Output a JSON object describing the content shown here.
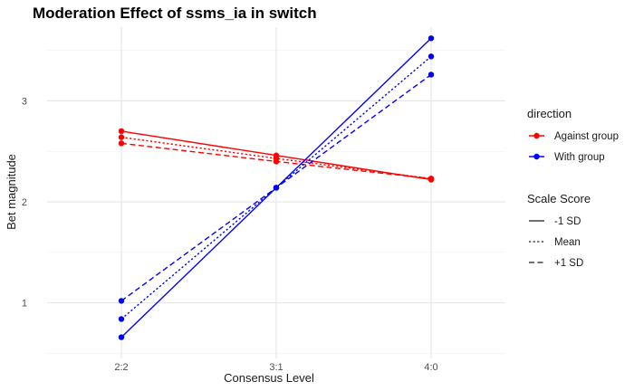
{
  "chart_data": {
    "type": "line",
    "title": "Moderation Effect of ssms_ia in switch",
    "xlabel": "Consensus Level",
    "ylabel": "Bet magnitude",
    "categories": [
      "2:2",
      "3:1",
      "4:0"
    ],
    "ylim": [
      0.45,
      3.73
    ],
    "yticks": [
      1,
      2,
      3
    ],
    "grid": true,
    "colors": {
      "Against group": "#ff0000",
      "With group": "#0000ff"
    },
    "linetypes": {
      "-1 SD": "solid",
      "Mean": "dotted",
      "+1 SD": "dashed"
    },
    "series": [
      {
        "direction": "Against group",
        "scale": "-1 SD",
        "values": [
          2.7,
          2.46,
          2.22
        ]
      },
      {
        "direction": "Against group",
        "scale": "Mean",
        "values": [
          2.64,
          2.43,
          2.23
        ]
      },
      {
        "direction": "Against group",
        "scale": "+1 SD",
        "values": [
          2.58,
          2.4,
          2.23
        ]
      },
      {
        "direction": "With group",
        "scale": "-1 SD",
        "values": [
          0.66,
          2.14,
          3.62
        ]
      },
      {
        "direction": "With group",
        "scale": "Mean",
        "values": [
          0.84,
          2.14,
          3.44
        ]
      },
      {
        "direction": "With group",
        "scale": "+1 SD",
        "values": [
          1.02,
          2.14,
          3.26
        ]
      }
    ],
    "legend": {
      "placement": "right",
      "groups": [
        {
          "title": "direction",
          "entries": [
            "Against group",
            "With group"
          ]
        },
        {
          "title": "Scale Score",
          "entries": [
            "-1 SD",
            "Mean",
            "+1 SD"
          ]
        }
      ]
    }
  }
}
